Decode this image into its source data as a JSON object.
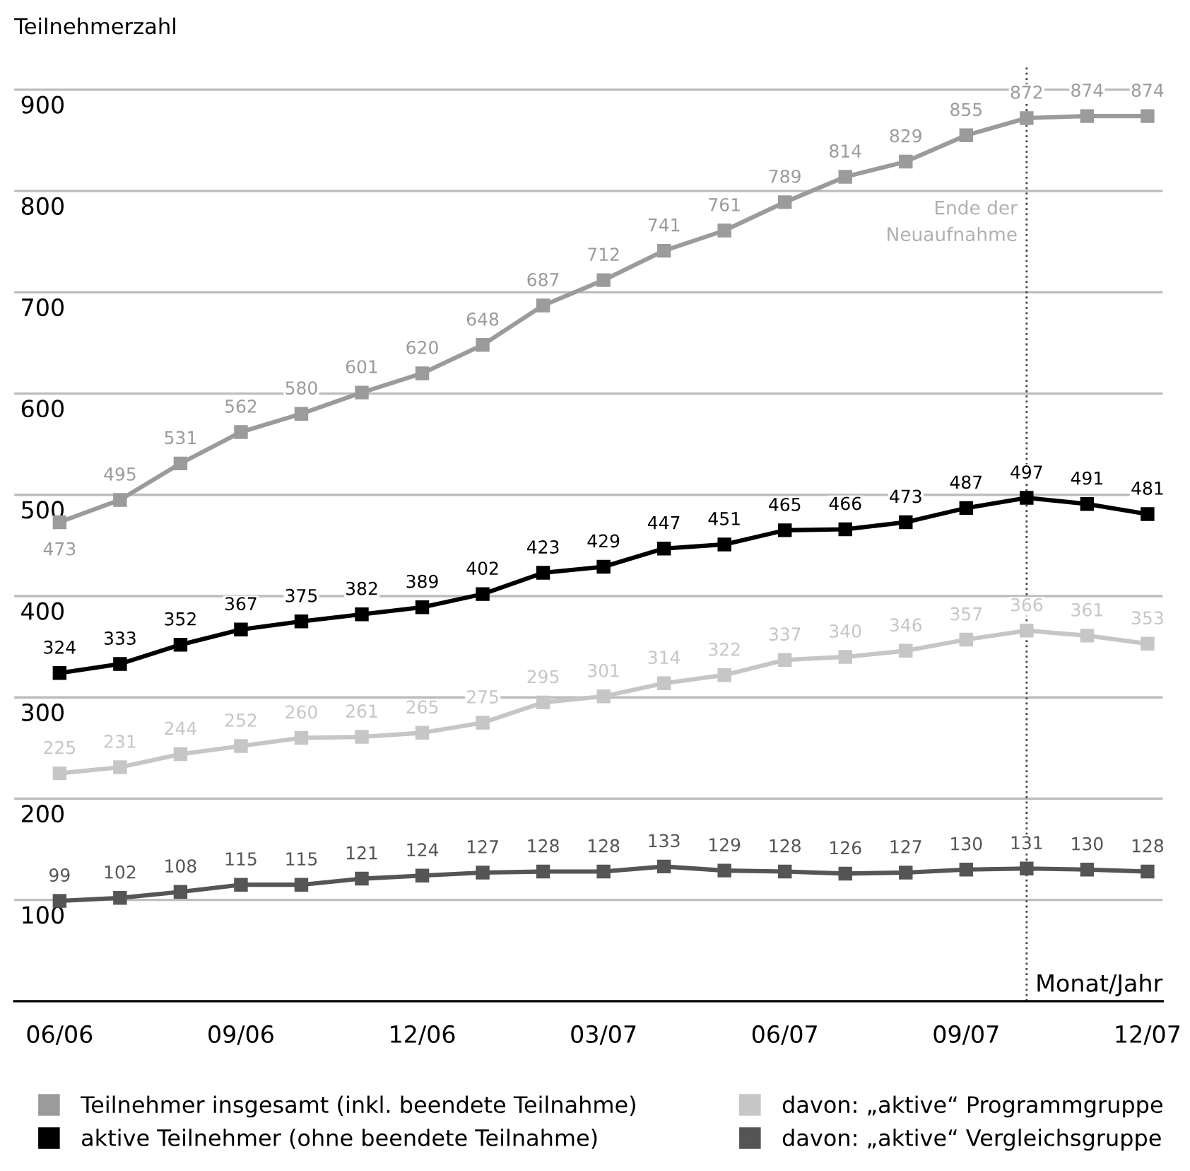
{
  "chart_data": {
    "type": "line",
    "ylabel": "Teilnehmerzahl",
    "xlabel": "Monat/Jahr",
    "categories": [
      "06/06",
      null,
      null,
      "09/06",
      null,
      null,
      "12/06",
      null,
      null,
      "03/07",
      null,
      null,
      "06/07",
      null,
      null,
      "09/07",
      null,
      null,
      "12/07"
    ],
    "ylim": [
      0,
      925
    ],
    "yticks": [
      100,
      200,
      300,
      400,
      500,
      600,
      700,
      800,
      900
    ],
    "grid": "y",
    "marker": "square",
    "line_style": "solid",
    "data_labels": true,
    "legend": "bottom",
    "annotations": [
      "Ende der\nNeuaufnahme"
    ],
    "series": [
      {
        "name": "Teilnehmer insgesamt (inkl. beendete Teilnahme)",
        "color": "#9b9b9b",
        "values": [
          473,
          495,
          531,
          562,
          580,
          601,
          620,
          648,
          687,
          712,
          741,
          761,
          789,
          814,
          829,
          855,
          872,
          874,
          874
        ]
      },
      {
        "name": "aktive Teilnehmer (ohne beendete Teilnahme)",
        "color": "#000000",
        "values": [
          324,
          333,
          352,
          367,
          375,
          382,
          389,
          402,
          423,
          429,
          447,
          451,
          465,
          466,
          473,
          487,
          497,
          491,
          481
        ]
      },
      {
        "name": "davon: „aktive“ Programmgruppe",
        "color": "#c6c6c6",
        "values": [
          225,
          231,
          244,
          252,
          260,
          261,
          265,
          275,
          295,
          301,
          314,
          322,
          337,
          340,
          346,
          357,
          366,
          361,
          353
        ]
      },
      {
        "name": "davon: „aktive“ Vergleichsgruppe",
        "color": "#555555",
        "values": [
          99,
          102,
          108,
          115,
          115,
          121,
          124,
          127,
          128,
          128,
          133,
          129,
          128,
          126,
          127,
          130,
          131,
          130,
          128
        ]
      }
    ]
  }
}
